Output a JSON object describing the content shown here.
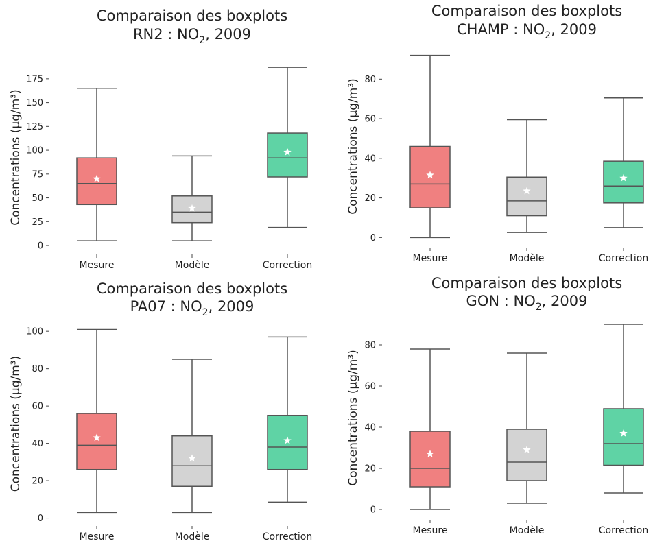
{
  "chart_data": [
    {
      "type": "boxplot",
      "title": "Comparaison des boxplots",
      "subtitle_prefix": "RN2 : NO",
      "subtitle_sub": "2",
      "subtitle_suffix": ", 2009",
      "ylabel": "Concentrations (µg/m³)",
      "ylim": [
        -5,
        190
      ],
      "yticks": [
        0,
        25,
        50,
        75,
        100,
        125,
        150,
        175
      ],
      "categories": [
        "Mesure",
        "Modèle",
        "Correction"
      ],
      "colors": [
        "#f08080",
        "#d3d3d3",
        "#5fd3a5"
      ],
      "boxes": [
        {
          "min": 5,
          "q1": 43,
          "median": 65,
          "q3": 92,
          "max": 165,
          "mean": 70
        },
        {
          "min": 5,
          "q1": 24,
          "median": 35,
          "q3": 52,
          "max": 94,
          "mean": 39
        },
        {
          "min": 19,
          "q1": 72,
          "median": 92,
          "q3": 118,
          "max": 187,
          "mean": 98
        }
      ]
    },
    {
      "type": "boxplot",
      "title": "Comparaison des boxplots",
      "subtitle_prefix": "CHAMP : NO",
      "subtitle_sub": "2",
      "subtitle_suffix": ", 2009",
      "ylabel": "Concentrations (µg/m³)",
      "ylim": [
        -3,
        95
      ],
      "yticks": [
        0,
        20,
        40,
        60,
        80
      ],
      "categories": [
        "Mesure",
        "Modèle",
        "Correction"
      ],
      "colors": [
        "#f08080",
        "#d3d3d3",
        "#5fd3a5"
      ],
      "boxes": [
        {
          "min": 0,
          "q1": 15,
          "median": 27,
          "q3": 46,
          "max": 92,
          "mean": 31.5
        },
        {
          "min": 2.5,
          "q1": 11,
          "median": 18.5,
          "q3": 30.5,
          "max": 59.5,
          "mean": 23.5
        },
        {
          "min": 5,
          "q1": 17.5,
          "median": 26,
          "q3": 38.5,
          "max": 70.5,
          "mean": 30
        }
      ]
    },
    {
      "type": "boxplot",
      "title": "Comparaison des boxplots",
      "subtitle_prefix": "PA07 : NO",
      "subtitle_sub": "2",
      "subtitle_suffix": ", 2009",
      "ylabel": "Concentrations (µg/m³)",
      "ylim": [
        -2,
        103
      ],
      "yticks": [
        0,
        20,
        40,
        60,
        80,
        100
      ],
      "categories": [
        "Mesure",
        "Modèle",
        "Correction"
      ],
      "colors": [
        "#f08080",
        "#d3d3d3",
        "#5fd3a5"
      ],
      "boxes": [
        {
          "min": 3,
          "q1": 26,
          "median": 39,
          "q3": 56,
          "max": 101,
          "mean": 43
        },
        {
          "min": 3,
          "q1": 17,
          "median": 28,
          "q3": 44,
          "max": 85,
          "mean": 32
        },
        {
          "min": 8.5,
          "q1": 26,
          "median": 38,
          "q3": 55,
          "max": 97,
          "mean": 41.5
        }
      ]
    },
    {
      "type": "boxplot",
      "title": "Comparaison des boxplots",
      "subtitle_prefix": "GON : NO",
      "subtitle_sub": "2",
      "subtitle_suffix": ", 2009",
      "ylabel": "Concentrations (µg/m³)",
      "ylim": [
        -3,
        92
      ],
      "yticks": [
        0,
        20,
        40,
        60,
        80
      ],
      "categories": [
        "Mesure",
        "Modèle",
        "Correction"
      ],
      "colors": [
        "#f08080",
        "#d3d3d3",
        "#5fd3a5"
      ],
      "boxes": [
        {
          "min": 0,
          "q1": 11,
          "median": 20,
          "q3": 38,
          "max": 78,
          "mean": 27
        },
        {
          "min": 3,
          "q1": 14,
          "median": 23,
          "q3": 39,
          "max": 76,
          "mean": 29
        },
        {
          "min": 8,
          "q1": 21.5,
          "median": 32,
          "q3": 49,
          "max": 90,
          "mean": 37
        }
      ]
    }
  ]
}
